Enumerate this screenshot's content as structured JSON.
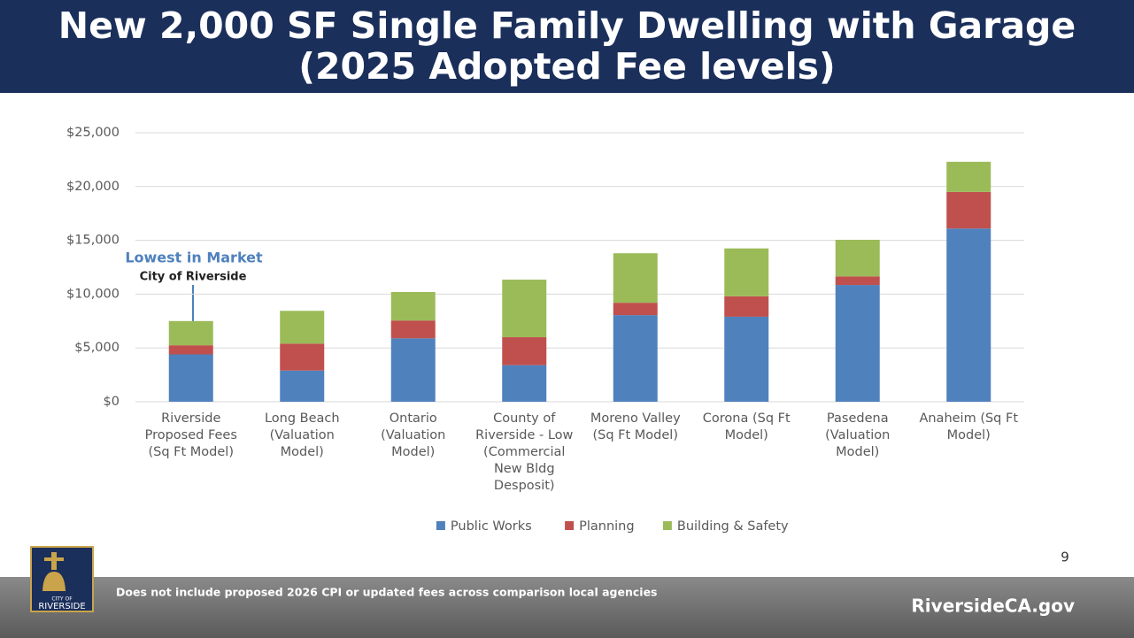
{
  "chart_data": {
    "type": "stacked_bar",
    "title": "New 2,000 SF Single Family Dwelling with Garage (2025 Adopted Fee levels)",
    "categories": [
      "Riverside Proposed Fees (Sq Ft Model)",
      "Long Beach (Valuation Model)",
      "Ontario (Valuation Model)",
      "County of Riverside - Low (Commercial New Bldg Desposit)",
      "Moreno Valley (Sq Ft Model)",
      "Corona (Sq Ft Model)",
      "Pasedena (Valuation Model)",
      "Anaheim (Sq Ft Model)"
    ],
    "series": [
      {
        "name": "Public Works",
        "color": "#4f81bd",
        "values": [
          4400,
          2900,
          5900,
          3400,
          8050,
          7900,
          10850,
          16100
        ]
      },
      {
        "name": "Planning",
        "color": "#c0504d",
        "values": [
          850,
          2500,
          1650,
          2600,
          1150,
          1900,
          800,
          3400
        ]
      },
      {
        "name": "Building & Safety",
        "color": "#9bbb59",
        "values": [
          2250,
          3050,
          2650,
          5350,
          4600,
          4450,
          3400,
          2800
        ]
      }
    ],
    "ylim": [
      0,
      25000
    ],
    "yticks": [
      {
        "value": 0,
        "label": "$0"
      },
      {
        "value": 5000,
        "label": "$5,000"
      },
      {
        "value": 10000,
        "label": "$10,000"
      },
      {
        "value": 15000,
        "label": "$15,000"
      },
      {
        "value": 20000,
        "label": "$20,000"
      },
      {
        "value": 25000,
        "label": "$25,000"
      }
    ],
    "grid": true,
    "legend": "bottom",
    "annotations": [
      "Lowest in Market",
      "City of Riverside"
    ]
  },
  "slide": {
    "page_number": "9",
    "footer_note": "Does not include proposed 2026 CPI or updated fees across comparison local agencies",
    "website": "RiversideCA.gov",
    "logo_text": [
      "CITY OF",
      "RIVERSIDE"
    ]
  }
}
